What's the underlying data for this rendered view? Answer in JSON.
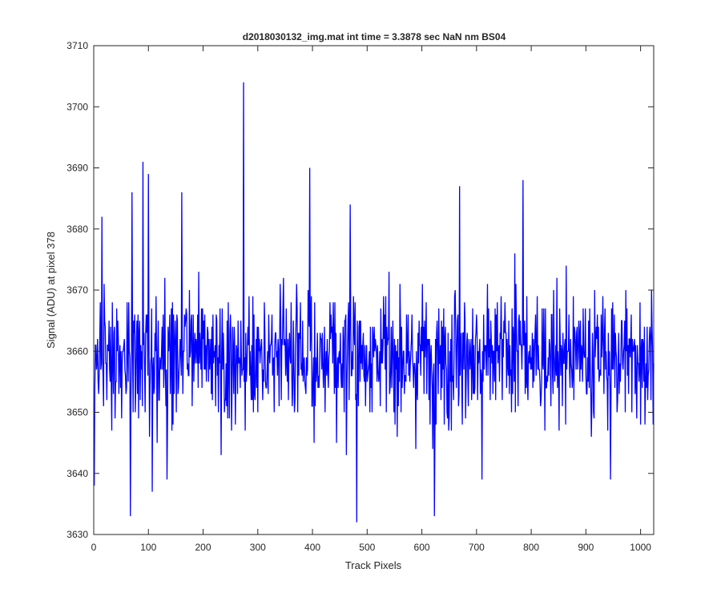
{
  "chart_data": {
    "type": "line",
    "title": "d2018030132_img.mat int time = 3.3878 sec  NaN nm BS04",
    "xlabel": "Track Pixels",
    "ylabel": "Signal (ADU) at pixel 378",
    "xlim": [
      0,
      1024
    ],
    "ylim": [
      3630,
      3710
    ],
    "xticks": [
      0,
      100,
      200,
      300,
      400,
      500,
      600,
      700,
      800,
      900,
      1000
    ],
    "yticks": [
      3630,
      3640,
      3650,
      3660,
      3670,
      3680,
      3690,
      3700,
      3710
    ],
    "grid": false,
    "legend": "none",
    "series": [
      {
        "color": "#0000ff",
        "x_start": 1,
        "x_step": 1,
        "num_points": 1024,
        "mean": 3659,
        "notable_points": [
          {
            "x": 1,
            "y": 3638
          },
          {
            "x": 15,
            "y": 3682
          },
          {
            "x": 67,
            "y": 3633
          },
          {
            "x": 70,
            "y": 3686
          },
          {
            "x": 90,
            "y": 3691
          },
          {
            "x": 100,
            "y": 3689
          },
          {
            "x": 107,
            "y": 3637
          },
          {
            "x": 134,
            "y": 3639
          },
          {
            "x": 161,
            "y": 3686
          },
          {
            "x": 274,
            "y": 3704
          },
          {
            "x": 395,
            "y": 3690
          },
          {
            "x": 469,
            "y": 3684
          },
          {
            "x": 481,
            "y": 3632
          },
          {
            "x": 623,
            "y": 3633
          },
          {
            "x": 669,
            "y": 3687
          },
          {
            "x": 710,
            "y": 3639
          },
          {
            "x": 785,
            "y": 3688
          },
          {
            "x": 945,
            "y": 3639
          }
        ]
      }
    ]
  }
}
